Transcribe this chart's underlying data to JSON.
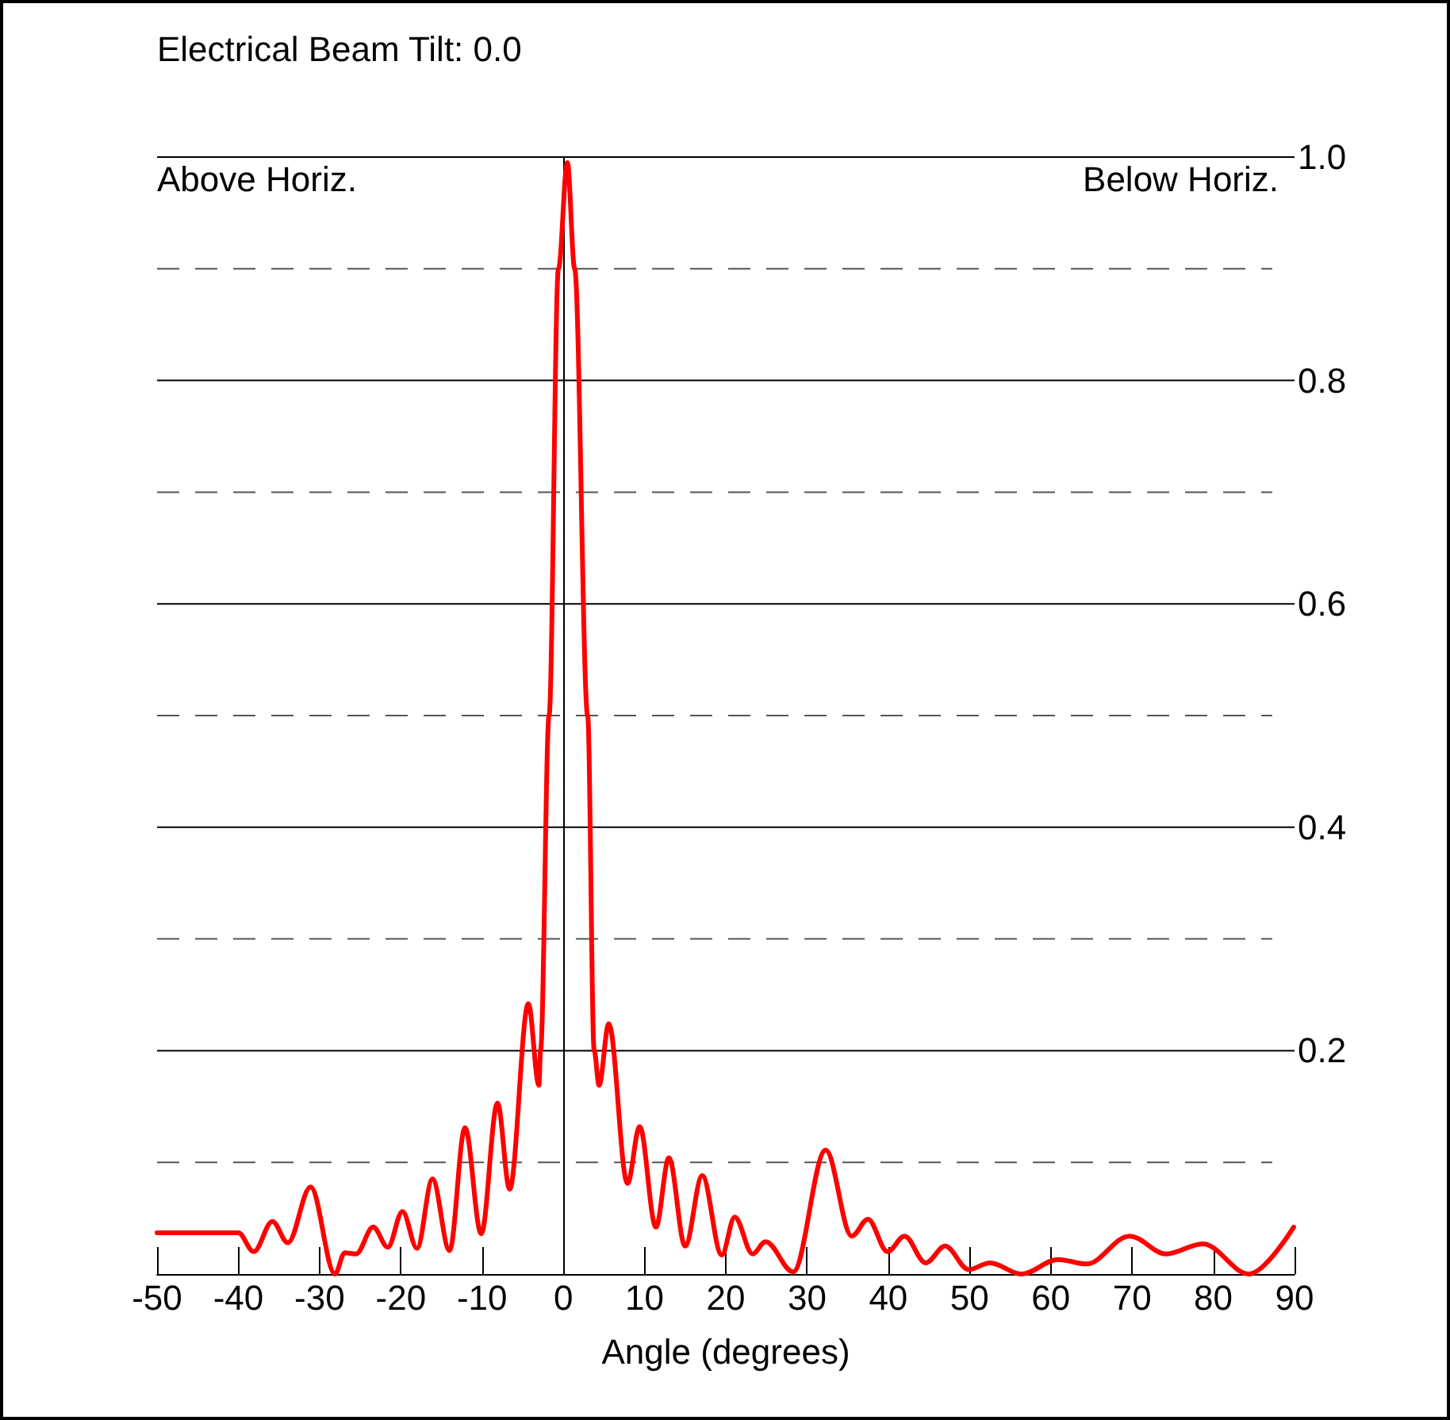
{
  "chart_data": {
    "type": "line",
    "title": "Electrical Beam Tilt: 0.0",
    "xlabel": "Angle (degrees)",
    "annotations": [
      "Above Horiz.",
      "Below Horiz."
    ],
    "xlim": [
      -50,
      90
    ],
    "xticks": [
      -50,
      -40,
      -30,
      -20,
      -10,
      0,
      10,
      20,
      30,
      40,
      50,
      60,
      70,
      80,
      90
    ],
    "ylim": [
      0,
      1
    ],
    "yticks": [
      {
        "value": 0.1,
        "label": null
      },
      {
        "value": 0.2,
        "label": "0.2"
      },
      {
        "value": 0.3,
        "label": null
      },
      {
        "value": 0.4,
        "label": "0.4"
      },
      {
        "value": 0.5,
        "label": null
      },
      {
        "value": 0.6,
        "label": "0.6"
      },
      {
        "value": 0.7,
        "label": null
      },
      {
        "value": 0.8,
        "label": "0.8"
      },
      {
        "value": 0.9,
        "label": null
      },
      {
        "value": 1,
        "label": "1.0"
      }
    ],
    "grid": "y",
    "marker": "none",
    "line_style": "solid",
    "ref_lines": [
      {
        "axis": "x",
        "value": 0,
        "color": "#000000"
      }
    ],
    "series": [
      {
        "color": "#ff0000",
        "x": [
          -50,
          -40,
          -38.1,
          -35.8,
          -33.9,
          -31.1,
          -28.1,
          -26.9,
          -25.5,
          -23.4,
          -21.6,
          -19.8,
          -18.0,
          -16.1,
          -14.0,
          -12.1,
          -10.1,
          -8.1,
          -6.6,
          -4.3,
          -3.0,
          -2.8,
          -1.75,
          -0.6,
          0.5,
          1.4,
          3.0,
          3.8,
          4.4,
          5.6,
          7.9,
          9.4,
          11.4,
          13.0,
          15.0,
          17.1,
          19.5,
          21.1,
          23.3,
          24.9,
          28.3,
          32.3,
          35.5,
          37.5,
          39.9,
          42.0,
          44.6,
          47.0,
          49.9,
          52.5,
          56.4,
          60.9,
          64.4,
          69.7,
          74.2,
          78.7,
          84.4,
          89.9
        ],
        "values": [
          0.037,
          0.037,
          0.02,
          0.047,
          0.028,
          0.078,
          0.0,
          0.019,
          0.018,
          0.042,
          0.024,
          0.056,
          0.023,
          0.085,
          0.021,
          0.131,
          0.036,
          0.153,
          0.076,
          0.242,
          0.169,
          0.2,
          0.5,
          0.9,
          0.995,
          0.9,
          0.5,
          0.2,
          0.169,
          0.224,
          0.081,
          0.132,
          0.042,
          0.104,
          0.025,
          0.088,
          0.017,
          0.051,
          0.018,
          0.029,
          0.002,
          0.111,
          0.034,
          0.049,
          0.02,
          0.034,
          0.01,
          0.025,
          0.004,
          0.01,
          0.0,
          0.013,
          0.009,
          0.034,
          0.018,
          0.027,
          0.0,
          0.042
        ]
      }
    ]
  }
}
